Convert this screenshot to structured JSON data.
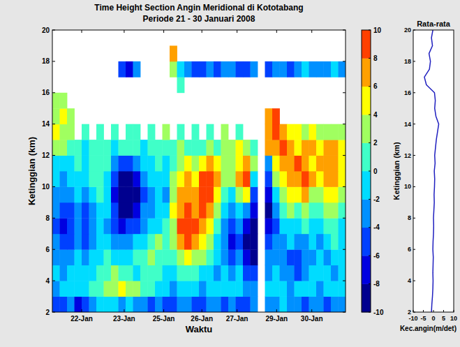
{
  "chart_data": [
    {
      "type": "heatmap",
      "title": "Time Height Section Angin Meridional di Kototabang",
      "subtitle": "Periode 21 - 30 Januari 2008",
      "xlabel": "Waktu",
      "ylabel": "Ketinggian (km)",
      "xlim": [
        0,
        10
      ],
      "ylim": [
        2,
        20
      ],
      "xticks": [
        {
          "value": 1.0,
          "label": "22-Jan"
        },
        {
          "value": 2.45,
          "label": "23-Jan"
        },
        {
          "value": 3.8,
          "label": "25-Jan"
        },
        {
          "value": 5.1,
          "label": "26-Jan"
        },
        {
          "value": 6.3,
          "label": "27-Jan"
        },
        {
          "value": 7.65,
          "label": "29-Jan"
        },
        {
          "value": 8.85,
          "label": "30-Jan"
        }
      ],
      "yticks": [
        2,
        4,
        6,
        8,
        10,
        12,
        14,
        16,
        18,
        20
      ],
      "x": [
        0.125,
        0.375,
        0.625,
        0.875,
        1.125,
        1.375,
        1.625,
        1.875,
        2.125,
        2.375,
        2.625,
        2.875,
        3.125,
        3.375,
        3.625,
        3.875,
        4.125,
        4.375,
        4.625,
        4.875,
        5.125,
        5.375,
        5.625,
        5.875,
        6.125,
        6.375,
        6.625,
        6.875,
        7.125,
        7.375,
        7.625,
        7.875,
        8.125,
        8.375,
        8.625,
        8.875,
        9.125,
        9.375,
        9.625,
        9.875
      ],
      "y": [
        2.5,
        3.5,
        4.5,
        5.5,
        6.5,
        7.5,
        8.5,
        9.5,
        10.5,
        11.5,
        12.5,
        13.5,
        14.5,
        15.5,
        16.5,
        17.5,
        18.5,
        19.5
      ],
      "values": [
        [
          -5,
          -6,
          -4,
          -7,
          -5,
          -3,
          -2,
          -1,
          -2,
          -3,
          -2,
          -4,
          -3,
          -5,
          -4,
          -6,
          -5,
          -4,
          -3,
          -5,
          -6,
          -4,
          -3,
          -5,
          -4,
          -6,
          -5,
          -4,
          null,
          -3,
          -4,
          -2,
          -3,
          -4,
          -5,
          -3,
          -4,
          -5,
          -3,
          -4
        ],
        [
          -3,
          -2,
          -1,
          -2,
          -1,
          0,
          1,
          2,
          3,
          4,
          3,
          2,
          1,
          0,
          -1,
          -2,
          -3,
          -2,
          -1,
          -2,
          -3,
          -2,
          -1,
          -2,
          -1,
          -2,
          -3,
          -4,
          null,
          -2,
          -1,
          -2,
          -3,
          -2,
          -1,
          -2,
          -3,
          -2,
          -1,
          -2
        ],
        [
          -2,
          -3,
          -2,
          -1,
          -2,
          -1,
          0,
          1,
          2,
          1,
          0,
          -1,
          0,
          1,
          0,
          -1,
          -2,
          0,
          1,
          0,
          -1,
          -2,
          -3,
          -2,
          -3,
          -2,
          -5,
          -6,
          null,
          -3,
          -2,
          -3,
          -4,
          -5,
          -3,
          -2,
          -1,
          -2,
          -3,
          -1
        ],
        [
          -3,
          -4,
          -3,
          -2,
          -3,
          -2,
          -1,
          0,
          -1,
          -2,
          -1,
          0,
          1,
          2,
          1,
          0,
          1,
          3,
          4,
          3,
          2,
          0,
          -2,
          -4,
          -5,
          -4,
          -8,
          -9,
          null,
          -4,
          -3,
          -4,
          -5,
          -6,
          -4,
          -3,
          -2,
          -3,
          -1,
          -2
        ],
        [
          -4,
          -6,
          -5,
          -3,
          -5,
          -3,
          -2,
          -1,
          -3,
          -4,
          -3,
          -2,
          -1,
          1,
          2,
          1,
          2,
          6,
          8,
          7,
          5,
          2,
          -1,
          -4,
          -7,
          -5,
          -9,
          -10,
          null,
          -6,
          -4,
          -3,
          -2,
          -4,
          -3,
          -2,
          -3,
          -1,
          0,
          -2
        ],
        [
          -5,
          -7,
          -6,
          -4,
          -6,
          -4,
          -2,
          -3,
          -5,
          -7,
          -6,
          -5,
          -3,
          -2,
          -1,
          0,
          3,
          8,
          9,
          9,
          7,
          4,
          1,
          -3,
          -6,
          -3,
          -7,
          -9,
          null,
          -8,
          -5,
          -2,
          -1,
          -2,
          0,
          -1,
          -2,
          0,
          1,
          -1
        ],
        [
          -4,
          -6,
          -5,
          -3,
          -5,
          -3,
          -1,
          -2,
          -6,
          -9,
          -9,
          -7,
          -4,
          -3,
          -2,
          -1,
          4,
          7,
          8,
          7,
          8,
          6,
          3,
          -2,
          -4,
          -1,
          -3,
          -8,
          null,
          -9,
          -4,
          0,
          2,
          1,
          3,
          1,
          0,
          2,
          3,
          1
        ],
        [
          -3,
          -4,
          -3,
          -2,
          -4,
          -2,
          0,
          -1,
          -7,
          -10,
          -10,
          -9,
          -5,
          -3,
          -2,
          -3,
          3,
          6,
          7,
          6,
          9,
          8,
          5,
          1,
          -1,
          3,
          5,
          -5,
          null,
          -7,
          -1,
          3,
          5,
          4,
          6,
          3,
          2,
          4,
          5,
          2
        ],
        [
          -2,
          -3,
          -2,
          -1,
          -1,
          1,
          0,
          -1,
          -6,
          -9,
          -10,
          -8,
          -4,
          -2,
          -1,
          -2,
          2,
          5,
          6,
          5,
          8,
          9,
          6,
          3,
          2,
          6,
          8,
          -1,
          null,
          -5,
          2,
          5,
          7,
          6,
          8,
          6,
          5,
          6,
          7,
          4
        ],
        [
          -1,
          -2,
          -1,
          0,
          -1,
          0,
          1,
          0,
          -3,
          -5,
          -6,
          -4,
          -2,
          -1,
          0,
          -1,
          1,
          3,
          4,
          2,
          5,
          6,
          4,
          2,
          3,
          5,
          7,
          2,
          null,
          -3,
          4,
          7,
          6,
          8,
          7,
          5,
          6,
          7,
          6,
          5
        ],
        [
          3,
          2,
          1,
          0,
          -1,
          0,
          1,
          0,
          -1,
          0,
          1,
          0,
          -1,
          0,
          1,
          0,
          1,
          2,
          1,
          0,
          1,
          2,
          1,
          3,
          2,
          4,
          3,
          1,
          null,
          6,
          7,
          8,
          6,
          5,
          7,
          6,
          5,
          7,
          6,
          5
        ],
        [
          4,
          3,
          2,
          null,
          1,
          null,
          0,
          null,
          1,
          null,
          1,
          0,
          null,
          1,
          null,
          2,
          null,
          1,
          null,
          0,
          null,
          1,
          null,
          2,
          null,
          1,
          null,
          null,
          null,
          7,
          8,
          6,
          5,
          4,
          3,
          4,
          3,
          2,
          3,
          2
        ],
        [
          3,
          4,
          2,
          null,
          null,
          null,
          null,
          null,
          null,
          null,
          null,
          null,
          null,
          null,
          null,
          null,
          null,
          null,
          null,
          null,
          null,
          null,
          null,
          null,
          null,
          null,
          null,
          null,
          null,
          6,
          8,
          null,
          null,
          null,
          null,
          null,
          null,
          null,
          null,
          null
        ],
        [
          2,
          3,
          null,
          null,
          null,
          null,
          null,
          null,
          null,
          null,
          null,
          null,
          null,
          null,
          null,
          null,
          null,
          null,
          null,
          null,
          null,
          null,
          null,
          null,
          null,
          null,
          null,
          null,
          null,
          null,
          null,
          null,
          null,
          null,
          null,
          null,
          null,
          null,
          null,
          null
        ],
        [
          null,
          null,
          null,
          null,
          null,
          null,
          null,
          null,
          null,
          null,
          null,
          null,
          null,
          null,
          null,
          null,
          null,
          1,
          null,
          null,
          null,
          null,
          null,
          null,
          null,
          null,
          null,
          null,
          null,
          null,
          null,
          null,
          null,
          null,
          null,
          null,
          null,
          null,
          null,
          null
        ],
        [
          null,
          null,
          null,
          null,
          null,
          null,
          null,
          null,
          null,
          -6,
          -7,
          -4,
          null,
          null,
          null,
          null,
          3,
          -1,
          -4,
          -5,
          -5,
          -4,
          -5,
          -3,
          -4,
          -5,
          -6,
          -4,
          null,
          -5,
          -4,
          -3,
          -5,
          -4,
          -2,
          -3,
          -4,
          -3,
          -2,
          -3
        ],
        [
          null,
          null,
          null,
          null,
          null,
          null,
          null,
          null,
          null,
          null,
          null,
          null,
          null,
          null,
          null,
          null,
          7,
          null,
          null,
          null,
          null,
          null,
          null,
          null,
          null,
          null,
          null,
          null,
          null,
          null,
          null,
          null,
          null,
          null,
          null,
          null,
          null,
          null,
          null,
          null
        ],
        [
          null,
          null,
          null,
          null,
          null,
          null,
          null,
          null,
          null,
          null,
          null,
          null,
          null,
          null,
          null,
          null,
          null,
          null,
          null,
          null,
          null,
          null,
          null,
          null,
          null,
          null,
          null,
          null,
          null,
          null,
          null,
          null,
          null,
          null,
          null,
          null,
          null,
          null,
          null,
          null
        ]
      ],
      "colorbar_range": [
        -10,
        10
      ],
      "colorbar_ticks": [
        -10,
        -8,
        -6,
        -4,
        -2,
        0,
        2,
        4,
        6,
        8,
        10
      ]
    },
    {
      "type": "line",
      "title": "Rata-rata",
      "xlabel": "Kec.angin(m/det)",
      "ylabel": "Ketinggian (km)",
      "orientation": "horizontal",
      "xlim": [
        -10,
        10
      ],
      "ylim": [
        2,
        20
      ],
      "xticks": [
        -10,
        -5,
        0,
        5,
        10
      ],
      "yticks": [
        2,
        4,
        6,
        8,
        10,
        12,
        14,
        16,
        18,
        20
      ],
      "y": [
        2,
        2.5,
        3,
        3.5,
        4,
        4.5,
        5,
        5.5,
        6,
        6.5,
        7,
        7.5,
        8,
        8.5,
        9,
        9.5,
        10,
        10.5,
        11,
        11.5,
        12,
        12.5,
        13,
        13.5,
        14,
        14.5,
        15,
        15.5,
        16,
        16.5,
        17,
        17.5,
        18,
        18.5,
        19,
        19.5,
        20
      ],
      "series": [
        {
          "color": "#1f1fbf",
          "values": [
            -1,
            -0.8,
            -0.5,
            -0.3,
            -0.2,
            -0.3,
            -0.2,
            -0.1,
            -0.3,
            -0.2,
            0,
            0.1,
            0,
            0.2,
            0.4,
            0.3,
            0.5,
            0.6,
            0.4,
            0.8,
            0.6,
            1.0,
            1.4,
            2.0,
            2.6,
            1.2,
            0.6,
            0.9,
            0.5,
            -3.5,
            -4.5,
            -2.0,
            -1.5,
            -2.2,
            -0.5,
            -1.0,
            -0.3
          ]
        }
      ]
    }
  ]
}
